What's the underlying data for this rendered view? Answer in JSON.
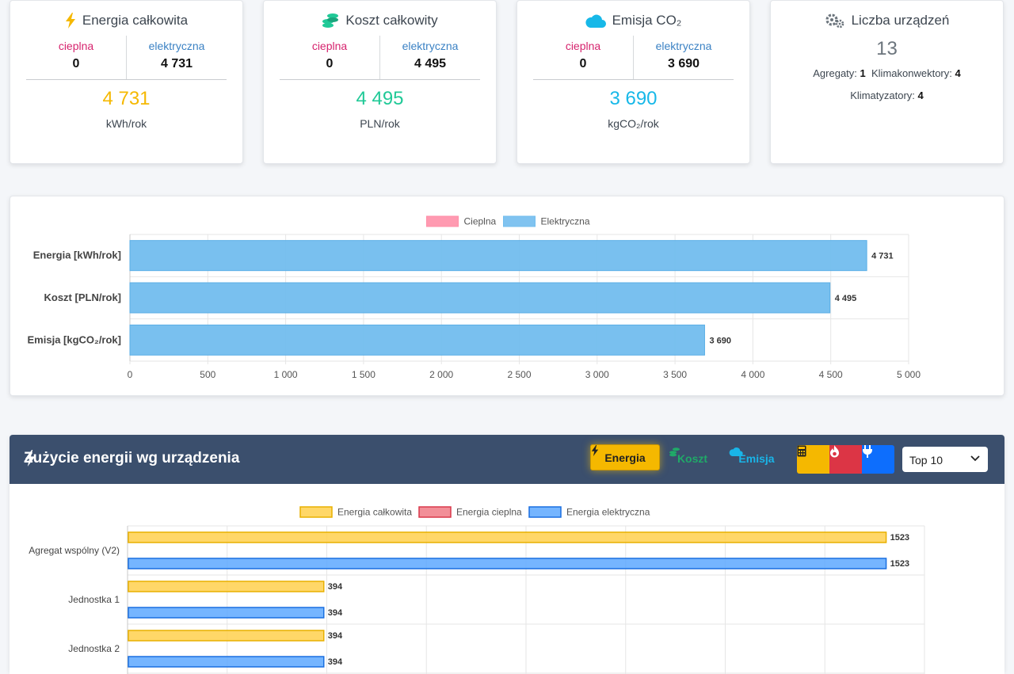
{
  "stats": {
    "energy": {
      "title": "Energia całkowita",
      "heat_label": "cieplna",
      "heat_value": "0",
      "elec_label": "elektryczna",
      "elec_value": "4 731",
      "total": "4 731",
      "unit": "kWh/rok",
      "color": "#f5b800"
    },
    "cost": {
      "title": "Koszt całkowity",
      "heat_label": "cieplna",
      "heat_value": "0",
      "elec_label": "elektryczna",
      "elec_value": "4 495",
      "total": "4 495",
      "unit": "PLN/rok",
      "color": "#20c997"
    },
    "emission": {
      "title": "Emisja CO₂",
      "heat_label": "cieplna",
      "heat_value": "0",
      "elec_label": "elektryczna",
      "elec_value": "3 690",
      "total": "3 690",
      "unit": "kgCO₂/rok",
      "color": "#17b8e8"
    },
    "devices": {
      "title": "Liczba urządzeń",
      "total": "13",
      "aggregates_label": "Agregaty:",
      "aggregates_value": "1",
      "fancoils_label": "Klimakonwektory:",
      "fancoils_value": "4",
      "ac_label": "Klimatyzatory:",
      "ac_value": "4"
    }
  },
  "chart_data": [
    {
      "type": "bar",
      "orientation": "horizontal",
      "stacked": true,
      "categories": [
        "Energia [kWh/rok]",
        "Koszt [PLN/rok]",
        "Emisja [kgCO₂/rok]"
      ],
      "series": [
        {
          "name": "Cieplna",
          "values": [
            0,
            0,
            0
          ],
          "color": "#ff8fa8"
        },
        {
          "name": "Elektryczna",
          "values": [
            4731,
            4495,
            3690
          ],
          "color": "#72bdee"
        }
      ],
      "data_labels": [
        "4 731",
        "4 495",
        "3 690"
      ],
      "xlim": [
        0,
        5000
      ],
      "xticks": [
        0,
        500,
        1000,
        1500,
        2000,
        2500,
        3000,
        3500,
        4000,
        4500,
        5000
      ],
      "xtick_labels": [
        "0",
        "500",
        "1 000",
        "1 500",
        "2 000",
        "2 500",
        "3 000",
        "3 500",
        "4 000",
        "4 500",
        "5 000"
      ],
      "legend": "top",
      "grid": true
    },
    {
      "type": "bar",
      "orientation": "horizontal",
      "categories": [
        "Agregat wspólny (V2)",
        "Jednostka 1",
        "Jednostka 2"
      ],
      "series": [
        {
          "name": "Energia całkowita",
          "values": [
            1523,
            394,
            394
          ],
          "color": "#ffd04d"
        },
        {
          "name": "Energia cieplna",
          "values": [
            0,
            0,
            0
          ],
          "color": "#f07b86"
        },
        {
          "name": "Energia elektryczna",
          "values": [
            1523,
            394,
            394
          ],
          "color": "#5da8ff"
        }
      ],
      "xlim": [
        0,
        1600
      ],
      "legend": "top",
      "grid": true
    }
  ],
  "device_panel": {
    "title": "Zużycie energii wg urządzenia",
    "btn_energy": "Energia",
    "btn_cost": "Koszt",
    "btn_emission": "Emisja",
    "select_value": "Top 10"
  }
}
